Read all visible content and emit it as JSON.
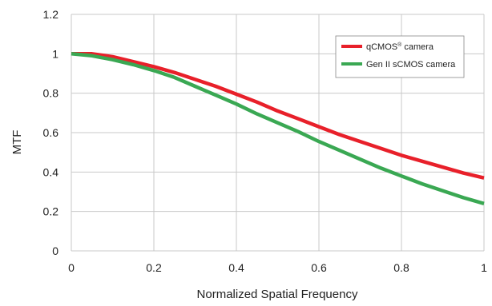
{
  "chart_data": {
    "type": "line",
    "title": "",
    "xlabel": "Normalized Spatial Frequency",
    "ylabel": "MTF",
    "xlim": [
      0,
      1
    ],
    "ylim": [
      0,
      1.2
    ],
    "x_ticks": [
      0,
      0.2,
      0.4,
      0.6,
      0.8,
      1
    ],
    "x_tick_labels": [
      "0",
      "0.2",
      "0.4",
      "0.6",
      "0.8",
      "1"
    ],
    "y_ticks": [
      0,
      0.2,
      0.4,
      0.6,
      0.8,
      1,
      1.2
    ],
    "y_tick_labels": [
      "0",
      "0.2",
      "0.4",
      "0.6",
      "0.8",
      "1",
      "1.2"
    ],
    "grid": true,
    "legend_position": "top-right",
    "series": [
      {
        "name": "qCMOS® camera",
        "legend_main": "qCMOS",
        "legend_sup": "®",
        "legend_rest": " camera",
        "color": "#e8202a",
        "x": [
          0,
          0.05,
          0.1,
          0.15,
          0.2,
          0.25,
          0.3,
          0.35,
          0.4,
          0.45,
          0.5,
          0.55,
          0.6,
          0.65,
          0.7,
          0.75,
          0.8,
          0.85,
          0.9,
          0.95,
          1.0
        ],
        "y": [
          1.0,
          1.0,
          0.985,
          0.96,
          0.935,
          0.905,
          0.87,
          0.835,
          0.795,
          0.755,
          0.71,
          0.67,
          0.63,
          0.59,
          0.555,
          0.52,
          0.485,
          0.455,
          0.425,
          0.395,
          0.37
        ]
      },
      {
        "name": "Gen II sCMOS camera",
        "color": "#3aa853",
        "x": [
          0,
          0.05,
          0.1,
          0.15,
          0.2,
          0.25,
          0.3,
          0.35,
          0.4,
          0.45,
          0.5,
          0.55,
          0.6,
          0.65,
          0.7,
          0.75,
          0.8,
          0.85,
          0.9,
          0.95,
          1.0
        ],
        "y": [
          1.0,
          0.99,
          0.97,
          0.945,
          0.915,
          0.88,
          0.835,
          0.79,
          0.745,
          0.695,
          0.65,
          0.605,
          0.555,
          0.51,
          0.465,
          0.42,
          0.38,
          0.34,
          0.305,
          0.27,
          0.24
        ]
      }
    ]
  },
  "colors": {
    "grid": "#c8c8c8",
    "legend_border": "#888888"
  }
}
